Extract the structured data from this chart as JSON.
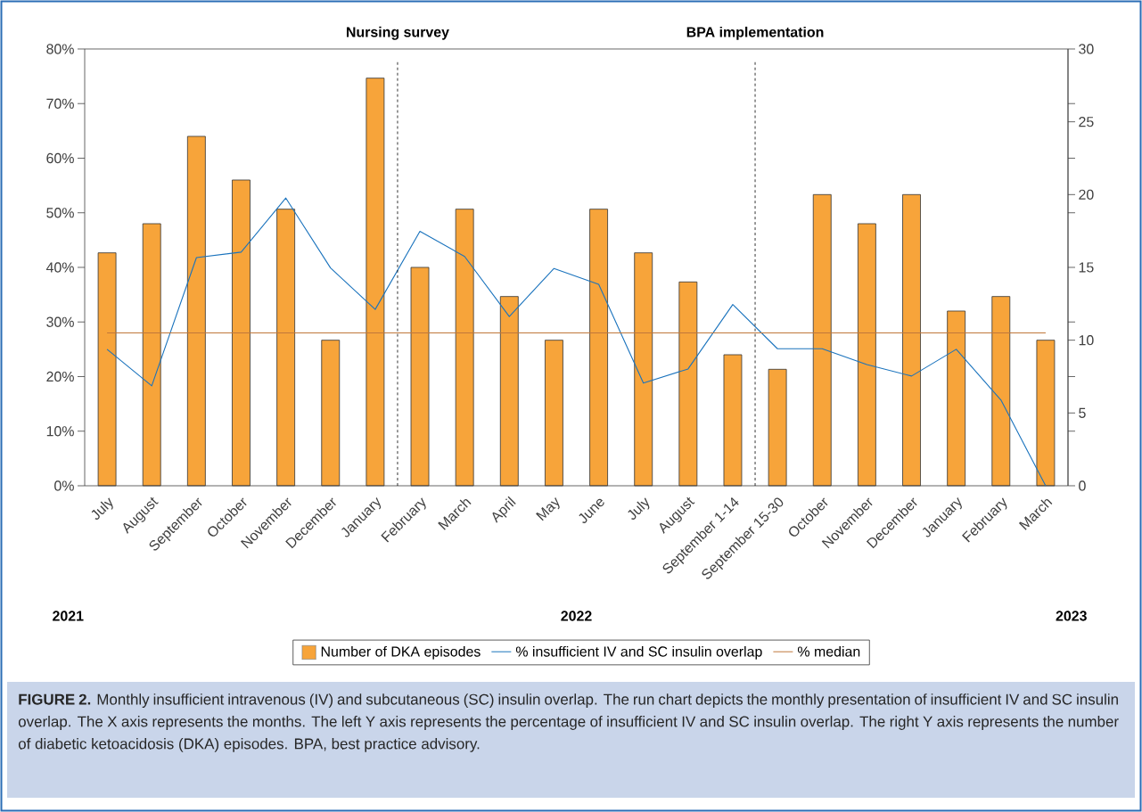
{
  "chart_data": {
    "type": "bar",
    "categories": [
      "July",
      "August",
      "September",
      "October",
      "November",
      "December",
      "January",
      "February",
      "March",
      "April",
      "May",
      "June",
      "July",
      "August",
      "September 1-14",
      "September 15-30",
      "October",
      "November",
      "December",
      "January",
      "February",
      "March"
    ],
    "series": [
      {
        "name": "Number of DKA episodes",
        "axis": "y2",
        "color": "#f7a43a",
        "values": [
          16,
          18,
          24,
          21,
          19,
          10,
          28,
          15,
          19,
          13,
          10,
          19,
          16,
          14,
          9,
          8,
          20,
          18,
          20,
          12,
          13,
          10
        ]
      },
      {
        "name": "% insufficient IV and SC insulin overlap",
        "type": "line",
        "axis": "y",
        "color": "#1a73bd",
        "values": [
          25.0,
          18.3,
          41.8,
          42.8,
          52.7,
          39.9,
          32.3,
          46.6,
          42.0,
          31.0,
          39.8,
          36.9,
          18.8,
          21.4,
          33.2,
          25.1,
          25.1,
          22.2,
          20.1,
          25.0,
          15.7,
          0
        ]
      },
      {
        "name": "% median",
        "type": "line",
        "axis": "y",
        "color": "#c0773a",
        "values": [
          28,
          28,
          28,
          28,
          28,
          28,
          28,
          28,
          28,
          28,
          28,
          28,
          28,
          28,
          28,
          28,
          28,
          28,
          28,
          28,
          28,
          28
        ]
      }
    ],
    "ylim": [
      0,
      80
    ],
    "yticks": [
      {
        "value": 0,
        "label": "0%"
      },
      {
        "value": 10,
        "label": "10%"
      },
      {
        "value": 20,
        "label": "20%"
      },
      {
        "value": 30,
        "label": "30%"
      },
      {
        "value": 40,
        "label": "40%"
      },
      {
        "value": 50,
        "label": "50%"
      },
      {
        "value": 60,
        "label": "60%"
      },
      {
        "value": 70,
        "label": "70%"
      },
      {
        "value": 80,
        "label": "80%"
      }
    ],
    "y2lim": [
      0,
      30
    ],
    "y2ticks": [
      0,
      {
        "value": 3.75,
        "label": null
      },
      5,
      {
        "value": 7.5,
        "label": null
      },
      10,
      {
        "value": 11.25,
        "label": null
      },
      15,
      {
        "value": 18.75,
        "label": null
      },
      20,
      {
        "value": 22.5,
        "label": null
      },
      25,
      {
        "value": 26.25,
        "label": null
      },
      30
    ],
    "annotations": [
      "Nursing survey",
      "BPA implementation",
      "2021",
      "2022",
      "2023",
      "**FIGURE 2.** Monthly insufficient intravenous (IV) and subcutaneous (SC) insulin overlap. The run chart depicts the monthly presentation of insufficient IV and SC insulin overlap. The X axis represents the months. The left Y axis represents the percentage of insufficient IV and SC insulin overlap. The right Y axis represents the number of diabetic ketoacidosis (DKA) episodes. BPA, best practice advisory."
    ],
    "legend": "bottom",
    "grid": false,
    "marker": "none",
    "line_style": "solid"
  }
}
